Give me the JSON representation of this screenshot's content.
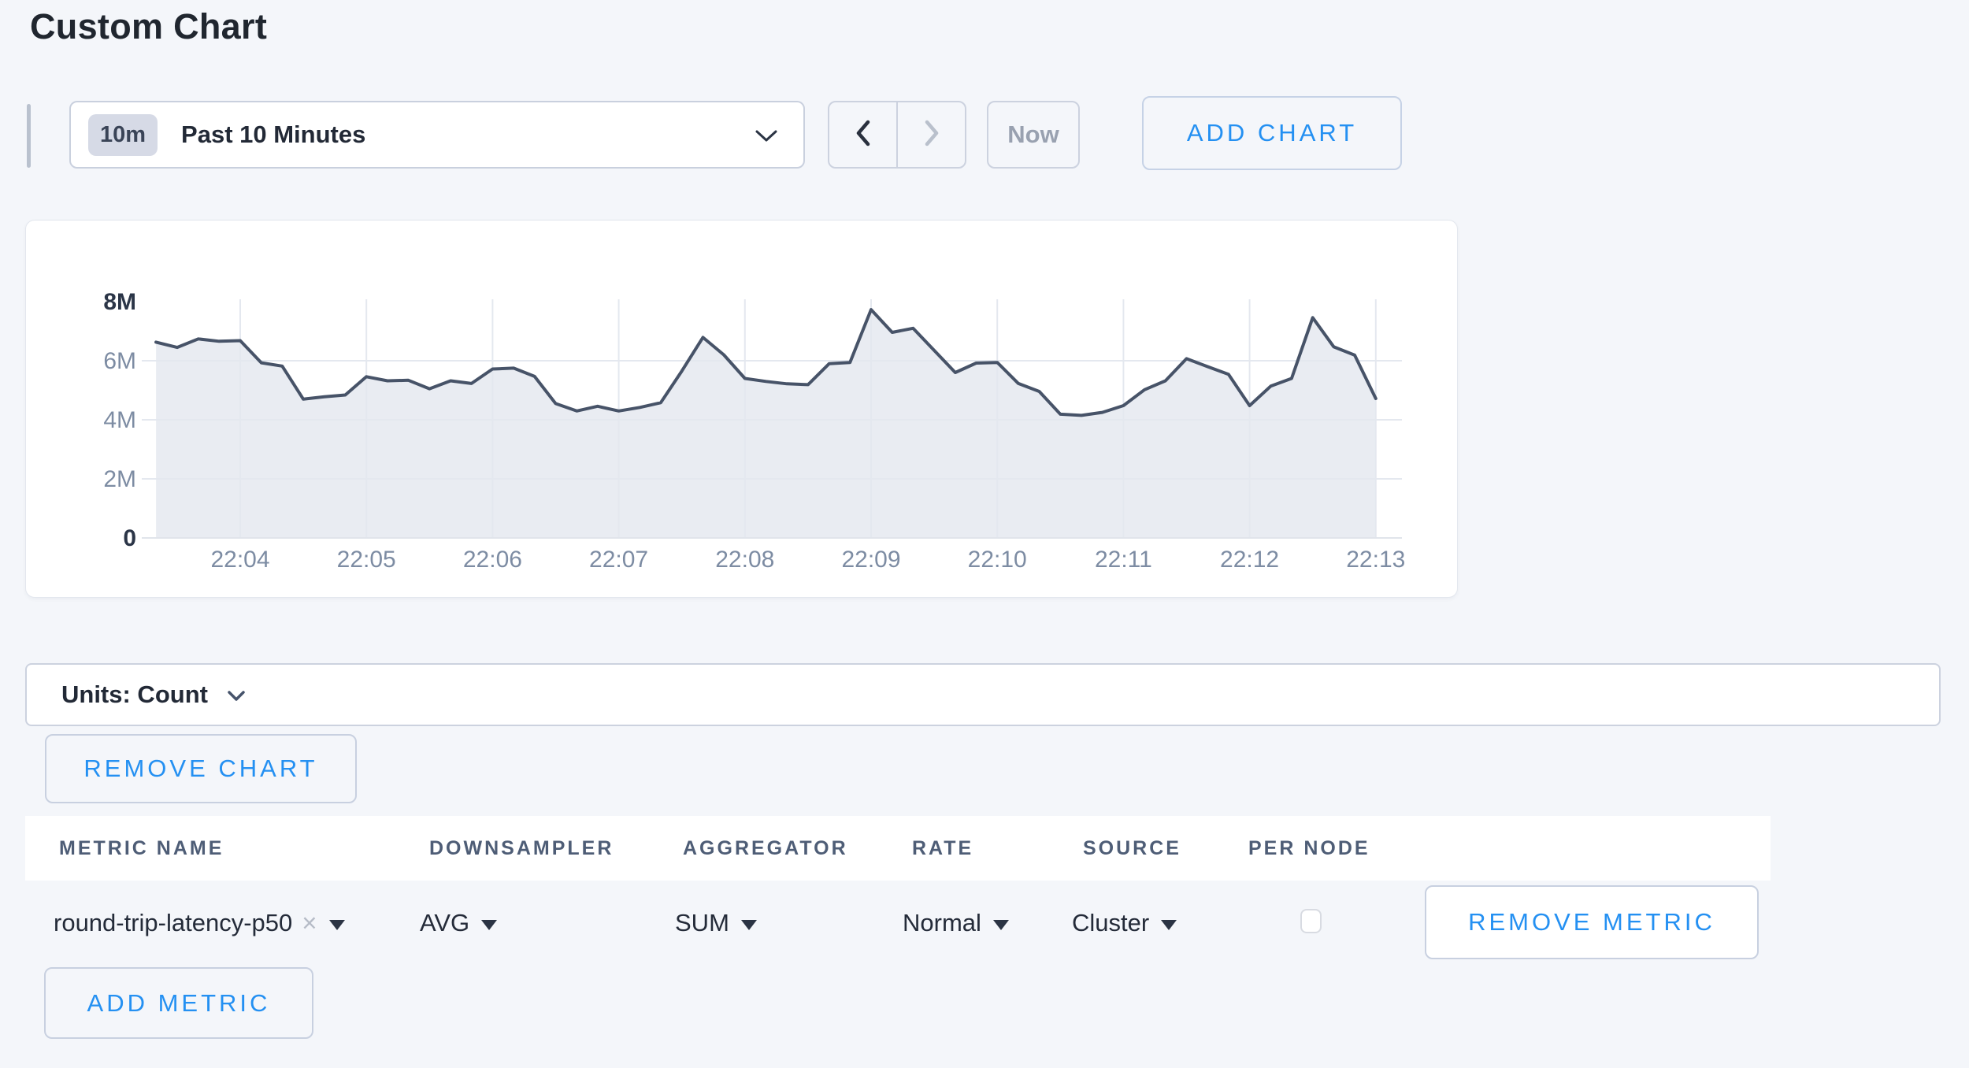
{
  "page": {
    "title": "Custom Chart"
  },
  "toolbar": {
    "time_badge": "10m",
    "time_label": "Past 10 Minutes",
    "prev_enabled": true,
    "next_enabled": false,
    "now_label": "Now",
    "add_chart_label": "ADD CHART"
  },
  "chart_data": {
    "type": "area",
    "title": "",
    "xlabel": "",
    "ylabel": "",
    "unit": "millions",
    "ylim": [
      0,
      8000000
    ],
    "grid": true,
    "legend": "none",
    "x_minutes": [
      0.333,
      0.5,
      0.667,
      0.833,
      1,
      1.167,
      1.333,
      1.5,
      1.667,
      1.833,
      2,
      2.167,
      2.333,
      2.5,
      2.667,
      2.833,
      3,
      3.167,
      3.333,
      3.5,
      3.667,
      3.833,
      4,
      4.167,
      4.333,
      4.5,
      4.667,
      4.833,
      5,
      5.167,
      5.333,
      5.5,
      5.667,
      5.833,
      6,
      6.167,
      6.333,
      6.5,
      6.667,
      6.833,
      7,
      7.167,
      7.333,
      7.5,
      7.667,
      7.833,
      8,
      8.167,
      8.333,
      8.5,
      8.667,
      8.833,
      9,
      9.167,
      9.333,
      9.5,
      9.667,
      9.833,
      10
    ],
    "values_millions": [
      6.63,
      6.45,
      6.74,
      6.66,
      6.68,
      5.93,
      5.82,
      4.7,
      4.78,
      4.84,
      5.46,
      5.32,
      5.34,
      5.05,
      5.32,
      5.23,
      5.72,
      5.75,
      5.47,
      4.55,
      4.3,
      4.46,
      4.3,
      4.42,
      4.58,
      5.65,
      6.79,
      6.2,
      5.4,
      5.3,
      5.22,
      5.19,
      5.9,
      5.94,
      7.73,
      6.96,
      7.1,
      6.35,
      5.6,
      5.92,
      5.94,
      5.23,
      4.96,
      4.19,
      4.15,
      4.25,
      4.48,
      5.02,
      5.32,
      6.07,
      5.8,
      5.54,
      4.48,
      5.14,
      5.4,
      7.46,
      6.47,
      6.19,
      4.72
    ],
    "x_ticks": [
      {
        "minute": 1,
        "label": "22:04"
      },
      {
        "minute": 2,
        "label": "22:05"
      },
      {
        "minute": 3,
        "label": "22:06"
      },
      {
        "minute": 4,
        "label": "22:07"
      },
      {
        "minute": 5,
        "label": "22:08"
      },
      {
        "minute": 6,
        "label": "22:09"
      },
      {
        "minute": 7,
        "label": "22:10"
      },
      {
        "minute": 8,
        "label": "22:11"
      },
      {
        "minute": 9,
        "label": "22:12"
      },
      {
        "minute": 10,
        "label": "22:13"
      }
    ],
    "y_ticks": [
      {
        "value": 8,
        "label": "8M",
        "bold": true
      },
      {
        "value": 6,
        "label": "6M",
        "bold": false
      },
      {
        "value": 4,
        "label": "4M",
        "bold": false
      },
      {
        "value": 2,
        "label": "2M",
        "bold": false
      },
      {
        "value": 0,
        "label": "0",
        "bold": true
      }
    ],
    "line_color": "#475368",
    "fill_color": "#e9ecf2",
    "gridline_color": "#e4e8ef",
    "tick_text_color": "#7d8ca3",
    "tick_text_bold_color": "#2b3547"
  },
  "units_bar": {
    "label": "Units: Count"
  },
  "chart_actions": {
    "remove_chart_label": "REMOVE CHART"
  },
  "metrics_table": {
    "headers": [
      "METRIC NAME",
      "DOWNSAMPLER",
      "AGGREGATOR",
      "RATE",
      "SOURCE",
      "PER NODE"
    ],
    "rows": [
      {
        "metric_name": "round-trip-latency-p50",
        "remove_icon": "×",
        "downsampler": "AVG",
        "aggregator": "SUM",
        "rate": "Normal",
        "source": "Cluster",
        "per_node_checked": false,
        "remove_label": "REMOVE METRIC"
      }
    ],
    "add_metric_label": "ADD METRIC"
  },
  "colors": {
    "accent_blue": "#2490f2",
    "page_background": "#f4f6fa",
    "card_background": "#ffffff",
    "dark_text": "#242b39",
    "disabled_text": "#99a1b0",
    "header_text": "#4e5d76",
    "badge_background": "#d6dae6"
  }
}
